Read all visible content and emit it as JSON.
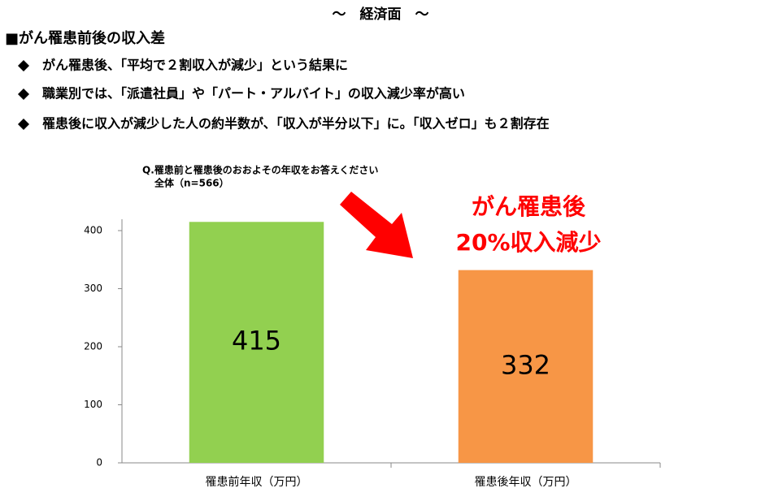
{
  "header": {
    "title": "～　経済面　～",
    "heading": "■がん罹患前後の収入差"
  },
  "bullets": [
    "がん罹患後、「平均で２割収入が減少」という結果に",
    "職業別では、「派遣社員」や「パート・アルバイト」の収入減少率が高い",
    "罹患後に収入が減少した人の約半数が、「収入が半分以下」に。「収入ゼロ」も２割存在"
  ],
  "chart_data": {
    "type": "bar",
    "title": "Q.罹患前と罹患後のおおよその年収をお答えください",
    "subtitle": "全体（n=566）",
    "categories": [
      "罹患前年収（万円）",
      "罹患後年収（万円）"
    ],
    "values": [
      415,
      332
    ],
    "colors": [
      "#92d050",
      "#f79646"
    ],
    "ylim": [
      0,
      400
    ],
    "yticks": [
      0,
      100,
      200,
      300,
      400
    ],
    "grid": false,
    "annotation": [
      "がん罹患後",
      "20%収入減少"
    ],
    "annotation_color": "#ff0000"
  }
}
